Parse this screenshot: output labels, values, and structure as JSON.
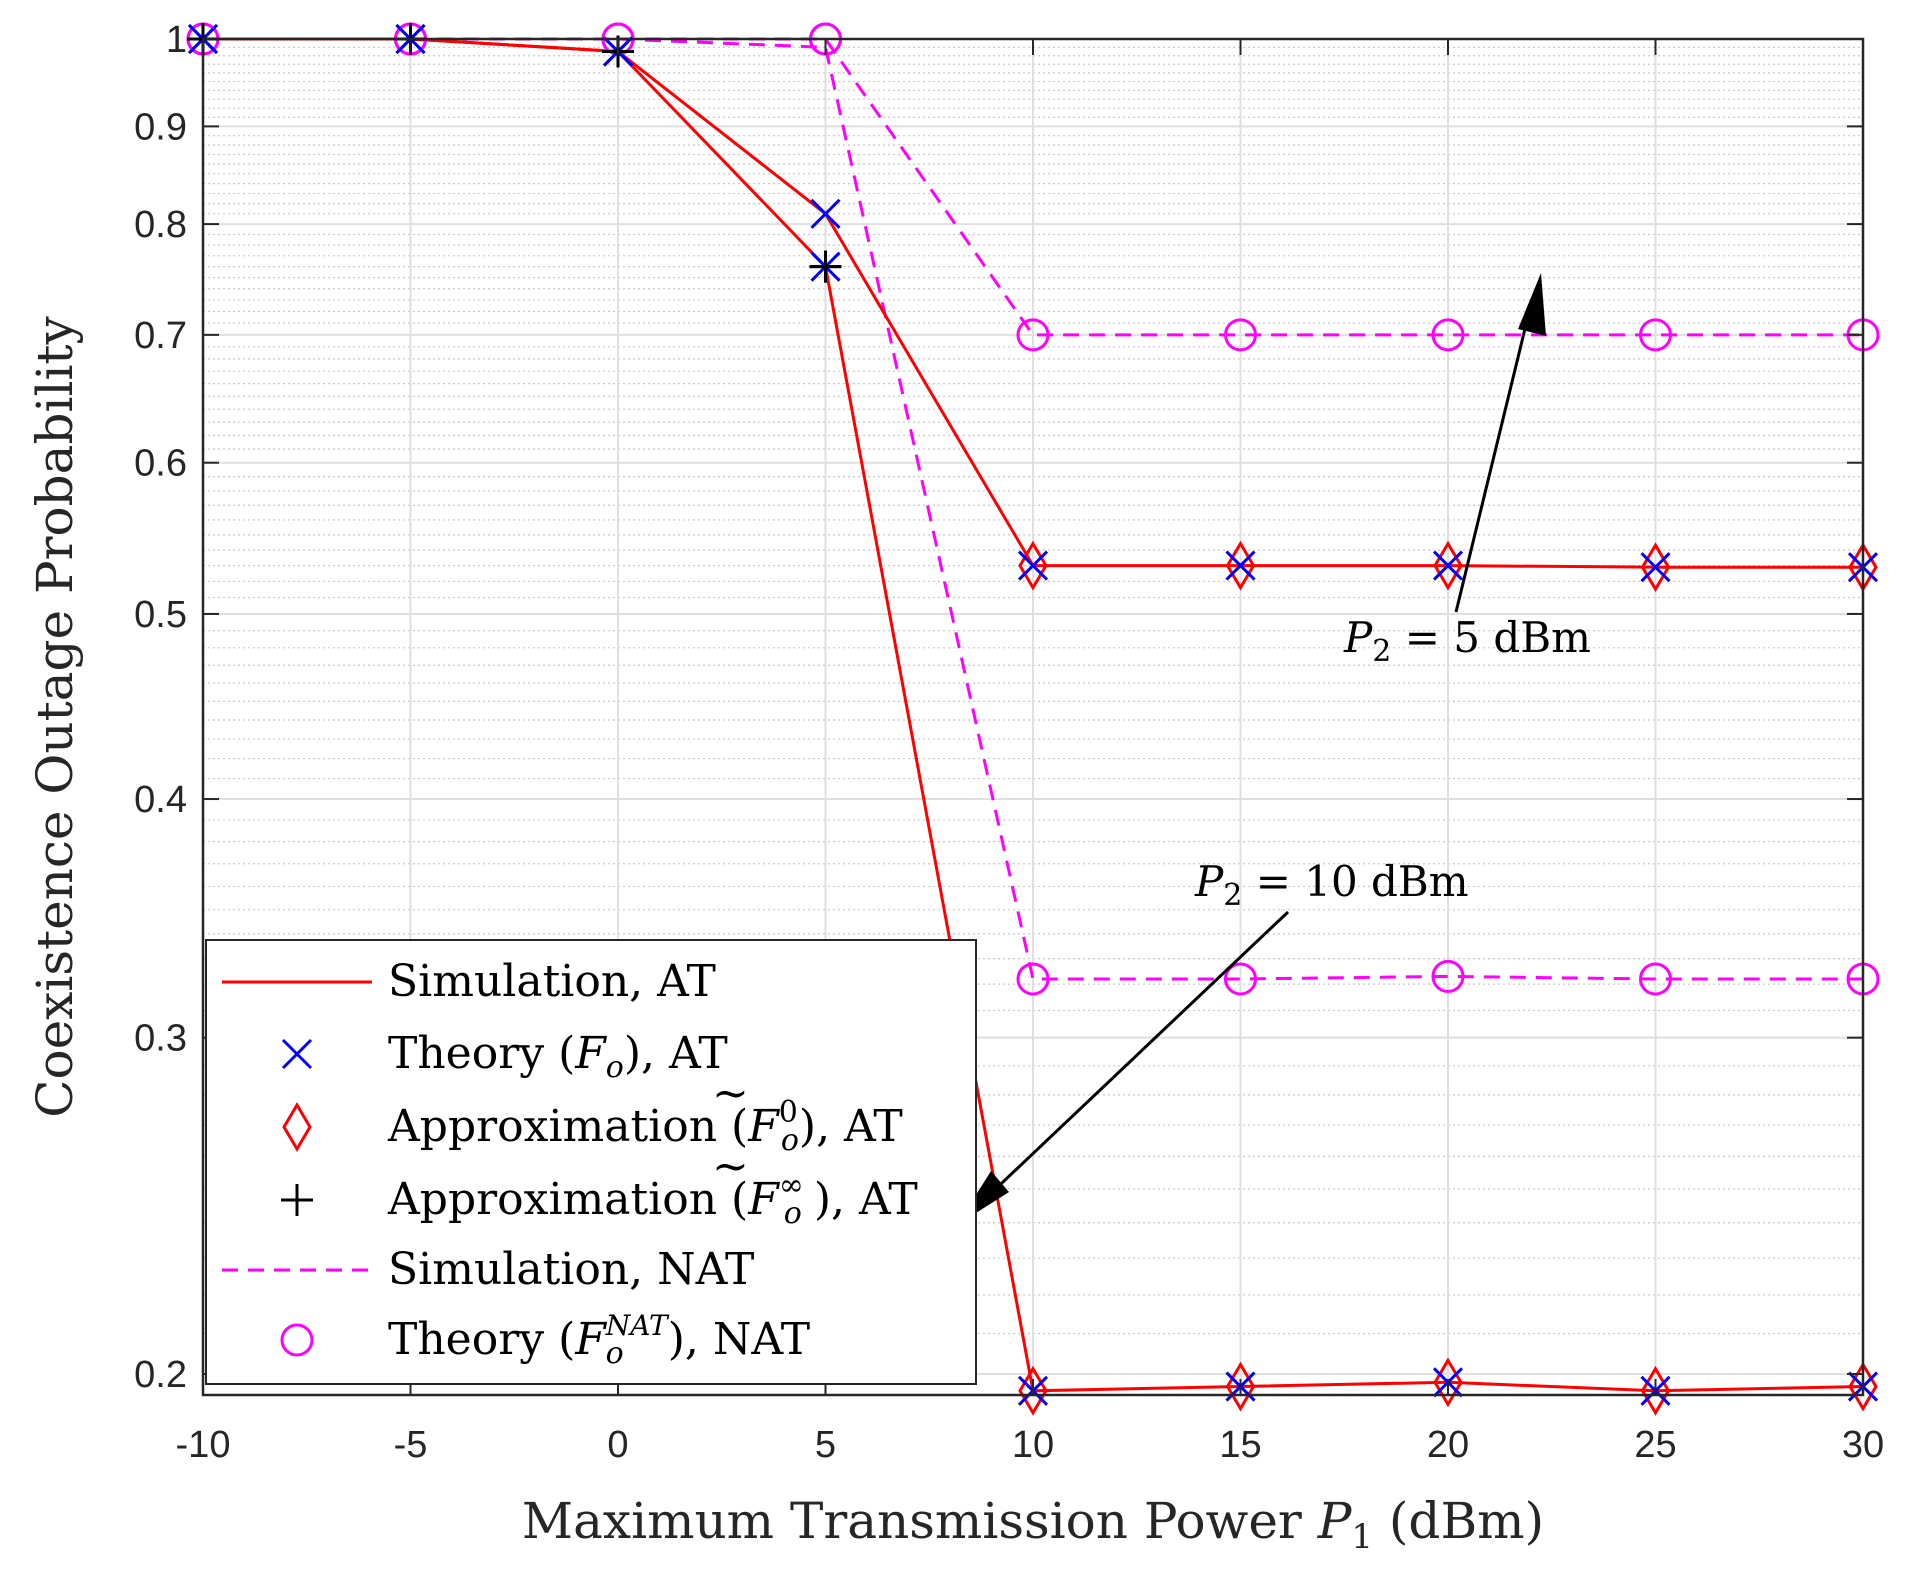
{
  "chart_data": {
    "type": "line",
    "title": "",
    "xlabel": "Maximum Transmission Power P1 (dBm)",
    "xlabel_parts": {
      "prefix": "Maximum Transmission Power ",
      "var": "P",
      "sub": "1",
      "suffix": " (dBm)"
    },
    "ylabel": "Coexistence Outage Probability",
    "yscale": "log",
    "xlim": [
      -10,
      30
    ],
    "ylim": [
      0.195,
      1.0
    ],
    "x": [
      -10,
      -5,
      0,
      5,
      10,
      15,
      20,
      25,
      30
    ],
    "xtick_labels": [
      "-10",
      "-5",
      "0",
      "5",
      "10",
      "15",
      "20",
      "25",
      "30"
    ],
    "ytick_values": [
      0.2,
      0.3,
      0.4,
      0.5,
      0.6,
      0.7,
      0.8,
      0.9,
      1.0
    ],
    "ytick_labels": [
      "0.2",
      "0.3",
      "0.4",
      "0.5",
      "0.6",
      "0.7",
      "0.8",
      "0.9",
      "1"
    ],
    "grid": true,
    "series": [
      {
        "name": "Simulation, AT",
        "group": "P2 = 5 dBm",
        "style": "line-solid",
        "color": "#ff0000",
        "values": [
          1.0,
          1.0,
          0.985,
          0.81,
          0.53,
          0.53,
          0.53,
          0.529,
          0.529
        ]
      },
      {
        "name": "Theory (Fo), AT",
        "group": "P2 = 5 dBm",
        "style": "marker-x",
        "color": "#0000ff",
        "values": [
          1.0,
          1.0,
          0.985,
          0.81,
          0.53,
          0.53,
          0.53,
          0.529,
          0.529
        ]
      },
      {
        "name": "Approximation (F~o^0), AT",
        "group": "P2 = 5 dBm",
        "style": "marker-diamond",
        "color": "#ff0000",
        "values": [
          null,
          null,
          null,
          null,
          0.53,
          0.53,
          0.53,
          0.529,
          0.529
        ]
      },
      {
        "name": "Approximation (F~o^inf), AT",
        "group": "P2 = 5 dBm",
        "style": "marker-plus",
        "color": "#000000",
        "values": [
          1.0,
          1.0,
          0.985,
          0.76,
          null,
          null,
          null,
          null,
          null
        ]
      },
      {
        "name": "Simulation, AT",
        "group": "P2 = 10 dBm",
        "style": "line-solid",
        "color": "#ff0000",
        "values": [
          1.0,
          1.0,
          0.985,
          0.76,
          0.196,
          0.197,
          0.198,
          0.196,
          0.197
        ]
      },
      {
        "name": "Theory (Fo), AT",
        "group": "P2 = 10 dBm",
        "style": "marker-x",
        "color": "#0000ff",
        "values": [
          1.0,
          1.0,
          0.985,
          0.76,
          0.196,
          0.197,
          0.198,
          0.196,
          0.197
        ]
      },
      {
        "name": "Approximation (F~o^0), AT",
        "group": "P2 = 10 dBm",
        "style": "marker-diamond",
        "color": "#ff0000",
        "values": [
          null,
          null,
          null,
          null,
          0.196,
          0.197,
          0.198,
          0.196,
          0.197
        ]
      },
      {
        "name": "Approximation (F~o^inf), AT",
        "group": "P2 = 10 dBm",
        "style": "marker-plus",
        "color": "#000000",
        "values": [
          1.0,
          1.0,
          0.985,
          0.76,
          null,
          null,
          null,
          null,
          null
        ]
      },
      {
        "name": "Simulation, NAT",
        "group": "P2 = 5 dBm",
        "style": "line-dashed",
        "color": "#ff00ff",
        "values": [
          1.0,
          1.0,
          1.0,
          1.0,
          0.7,
          0.7,
          0.7,
          0.7,
          0.7
        ]
      },
      {
        "name": "Theory (Fo^NAT), NAT",
        "group": "P2 = 5 dBm",
        "style": "marker-circle",
        "color": "#ff00ff",
        "values": [
          1.0,
          1.0,
          1.0,
          1.0,
          0.7,
          0.7,
          0.7,
          0.7,
          0.7
        ]
      },
      {
        "name": "Simulation, NAT",
        "group": "P2 = 10 dBm",
        "style": "line-dashed",
        "color": "#ff00ff",
        "values": [
          1.0,
          1.0,
          1.0,
          0.99,
          0.322,
          0.322,
          0.323,
          0.322,
          0.322
        ]
      },
      {
        "name": "Theory (Fo^NAT), NAT",
        "group": "P2 = 10 dBm",
        "style": "marker-circle",
        "color": "#ff00ff",
        "values": [
          1.0,
          1.0,
          1.0,
          1.0,
          0.322,
          0.322,
          0.323,
          0.322,
          0.322
        ]
      }
    ],
    "legend": {
      "placement": "bottom-left",
      "entries": [
        {
          "style": "line-solid",
          "color": "#ff0000",
          "text": "Simulation, AT"
        },
        {
          "style": "marker-x",
          "color": "#0000ff",
          "prefix": "Theory (",
          "var": "F",
          "sub": "o",
          "sup": "",
          "tilde": false,
          "suffix": "), AT"
        },
        {
          "style": "marker-diamond",
          "color": "#ff0000",
          "prefix": "Approximation (",
          "var": "F",
          "sub": "o",
          "sup": "0",
          "tilde": true,
          "suffix": "), AT"
        },
        {
          "style": "marker-plus",
          "color": "#000000",
          "prefix": "Approximation (",
          "var": "F",
          "sub": "o",
          "sup": "∞",
          "tilde": true,
          "suffix": "), AT"
        },
        {
          "style": "line-dashed",
          "color": "#ff00ff",
          "text": "Simulation, NAT"
        },
        {
          "style": "marker-circle",
          "color": "#ff00ff",
          "prefix": "Theory (",
          "var": "F",
          "sub": "o",
          "sup": "NAT",
          "tilde": false,
          "suffix": "), NAT"
        }
      ]
    },
    "annotations": [
      {
        "text": "P2 = 5 dBm",
        "var": "P",
        "sub": "2",
        "rest": " = 5 dBm",
        "points_to": "curves at y ≈ 0.7"
      },
      {
        "text": "P2 = 10 dBm",
        "var": "P",
        "sub": "2",
        "rest": " = 10 dBm",
        "points_to": "curves at y ≈ 0.2"
      }
    ]
  },
  "colors": {
    "axis": "#262626",
    "grid_major": "#dfdfdf",
    "grid_minor": "#c8c8c8",
    "red": "#ff0000",
    "blue": "#0000ff",
    "magenta": "#ff00ff",
    "black": "#000000"
  }
}
